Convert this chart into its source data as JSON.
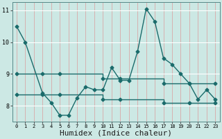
{
  "title": "",
  "xlabel": "Humidex (Indice chaleur)",
  "ylabel": "",
  "bg_color": "#cce8e4",
  "line_color": "#1a6b6b",
  "xlim": [
    -0.5,
    23.5
  ],
  "ylim": [
    7.5,
    11.25
  ],
  "yticks": [
    8,
    9,
    10,
    11
  ],
  "xticks": [
    0,
    1,
    2,
    3,
    4,
    5,
    6,
    7,
    8,
    9,
    10,
    11,
    12,
    13,
    14,
    15,
    16,
    17,
    18,
    19,
    20,
    21,
    22,
    23
  ],
  "series_main": {
    "x": [
      0,
      1,
      3,
      4,
      5,
      6,
      7,
      8,
      9,
      10,
      11,
      12,
      13,
      14,
      15,
      16,
      17,
      18,
      19,
      20,
      21,
      22,
      23
    ],
    "y": [
      10.5,
      10.0,
      8.4,
      8.1,
      7.7,
      7.7,
      8.25,
      8.6,
      8.5,
      8.5,
      9.2,
      8.8,
      8.8,
      9.7,
      11.05,
      10.65,
      9.5,
      9.3,
      9.0,
      8.7,
      8.2,
      8.5,
      8.2
    ]
  },
  "series_upper": {
    "x": [
      0,
      3,
      5,
      10,
      12,
      17,
      20,
      23
    ],
    "y": [
      9.0,
      9.0,
      9.0,
      8.85,
      8.85,
      8.7,
      8.7,
      8.7
    ]
  },
  "series_lower": {
    "x": [
      0,
      3,
      5,
      10,
      12,
      17,
      20,
      23
    ],
    "y": [
      8.35,
      8.35,
      8.35,
      8.2,
      8.2,
      8.1,
      8.1,
      8.1
    ]
  },
  "vgrid_color": "#d8a8a8",
  "hgrid_color": "#ffffff",
  "marker": "D",
  "markersize": 2.5,
  "linewidth": 1.0,
  "xlabel_fontsize": 8,
  "tick_fontsize": 6
}
